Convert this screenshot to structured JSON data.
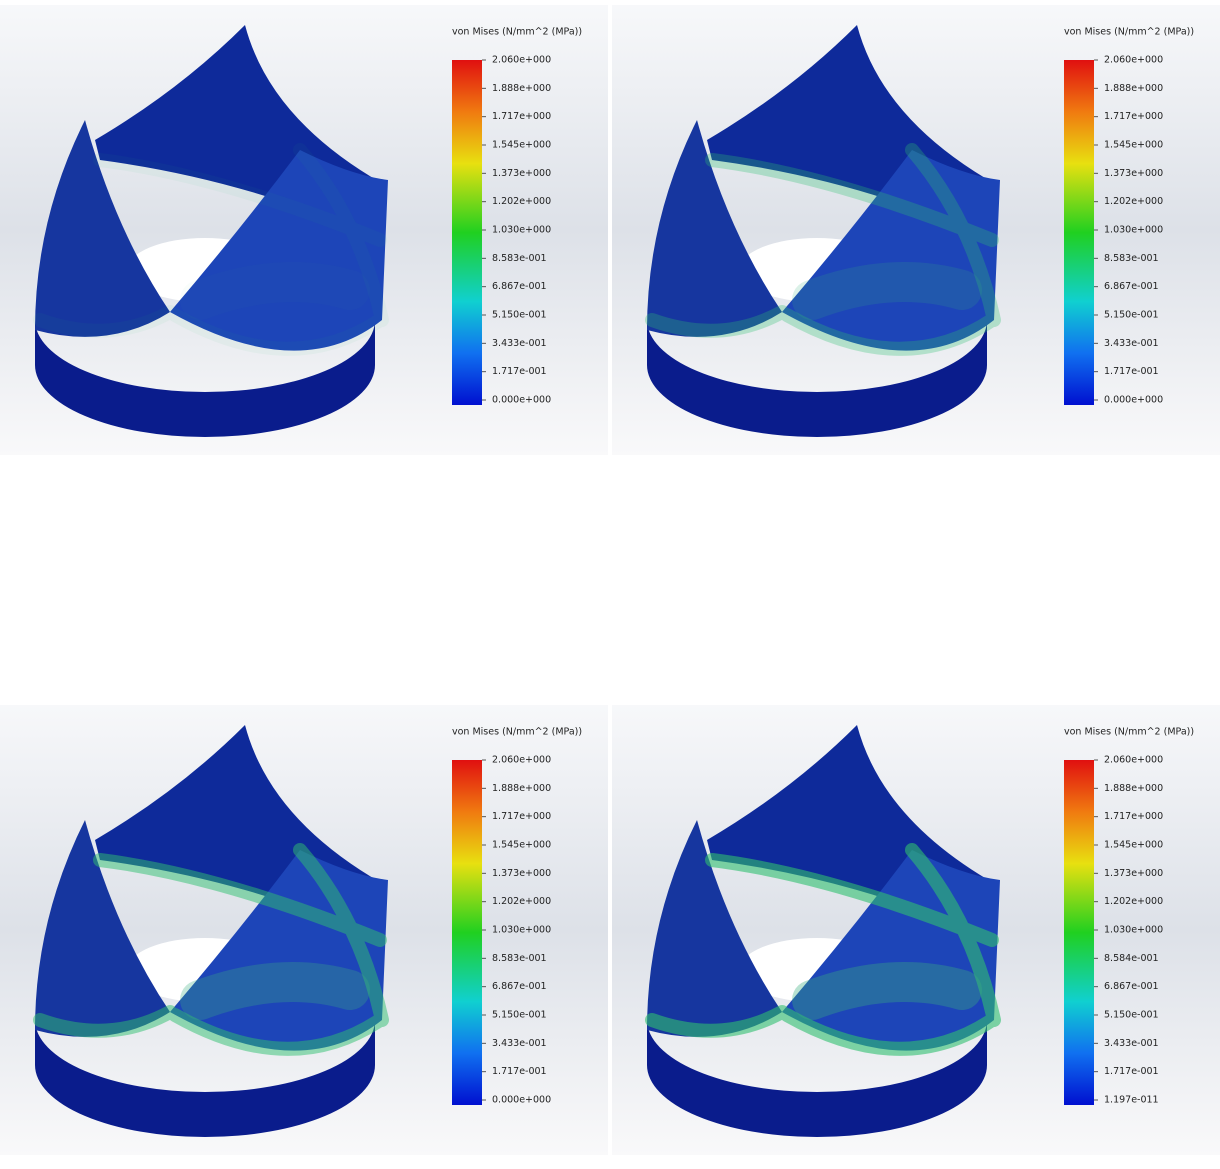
{
  "panels": [
    {
      "legend": {
        "title": "von Mises (N/mm^2 (MPa))",
        "labels": [
          "2.060e+000",
          "1.888e+000",
          "1.717e+000",
          "1.545e+000",
          "1.373e+000",
          "1.202e+000",
          "1.030e+000",
          "8.583e-001",
          "6.867e-001",
          "5.150e-001",
          "3.433e-001",
          "1.717e-001",
          "0.000e+000"
        ]
      }
    },
    {
      "legend": {
        "title": "von Mises (N/mm^2 (MPa))",
        "labels": [
          "2.060e+000",
          "1.888e+000",
          "1.717e+000",
          "1.545e+000",
          "1.373e+000",
          "1.202e+000",
          "1.030e+000",
          "8.583e-001",
          "6.867e-001",
          "5.150e-001",
          "3.433e-001",
          "1.717e-001",
          "0.000e+000"
        ]
      }
    },
    {
      "legend": {
        "title": "von Mises (N/mm^2 (MPa))",
        "labels": [
          "2.060e+000",
          "1.888e+000",
          "1.717e+000",
          "1.545e+000",
          "1.373e+000",
          "1.202e+000",
          "1.030e+000",
          "8.583e-001",
          "6.867e-001",
          "5.150e-001",
          "3.433e-001",
          "1.717e-001",
          "0.000e+000"
        ]
      }
    },
    {
      "legend": {
        "title": "von Mises (N/mm^2 (MPa))",
        "labels": [
          "2.060e+000",
          "1.888e+000",
          "1.717e+000",
          "1.545e+000",
          "1.373e+000",
          "1.202e+000",
          "1.030e+000",
          "8.584e-001",
          "6.867e-001",
          "5.150e-001",
          "3.433e-001",
          "1.717e-001",
          "1.197e-011"
        ]
      }
    }
  ]
}
